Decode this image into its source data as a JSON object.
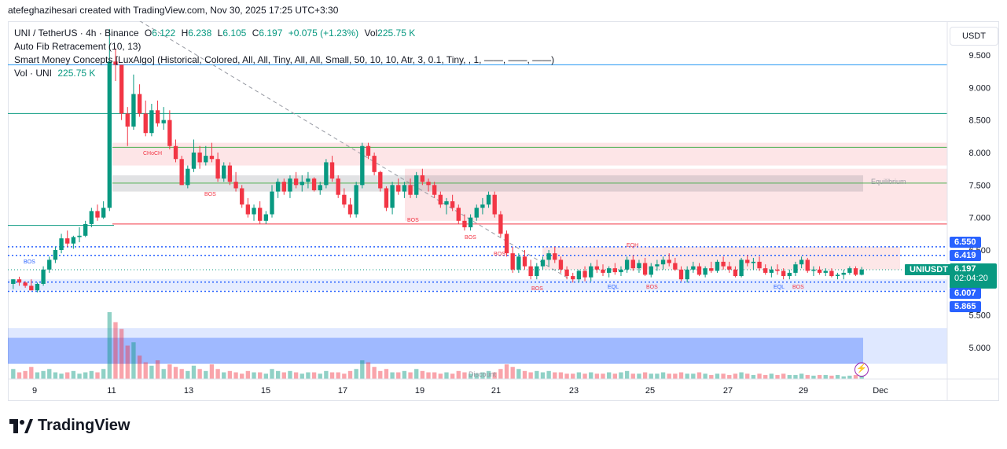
{
  "caption": "atefeghazihesari created with TradingView.com, Nov 30, 2025 17:25 UTC+3:30",
  "legend": {
    "symbol": "UNI / TetherUS · 4h · Binance",
    "o_label": "O",
    "o": "6.122",
    "h_label": "H",
    "h": "6.238",
    "l_label": "L",
    "l": "6.105",
    "c_label": "C",
    "c": "6.197",
    "change": "+0.075 (+1.23%)",
    "vol_label": "Vol",
    "vol": "225.75 K",
    "fib": "Auto Fib Retracement (10, 13)",
    "smc": "Smart Money Concepts [LuxAlgo] (Historical, Colored, All, All, Tiny, All, All, Small, 50, 10, 10, Atr, 3, 0.1, Tiny, , 1, ——, ——, ——)",
    "vol_ind": "Vol · UNI",
    "vol_ind_value": "225.75 K"
  },
  "currency_button": "USDT",
  "brand": "TradingView",
  "badges": {
    "p6550": "6.550",
    "p6419": "6.419",
    "symbol": "UNIUSDT",
    "last": "6.197",
    "countdown": "02:04:20",
    "p6007": "6.007",
    "p5865": "5.865"
  },
  "colors": {
    "up": "#089981",
    "down": "#f23645",
    "blue": "#2962ff"
  },
  "chart_data": {
    "type": "candlestick",
    "interval": "4h",
    "symbol": "UNI / TetherUS",
    "ylim": [
      4.7,
      9.8
    ],
    "y_ticks": [
      "9.500",
      "9.000",
      "8.500",
      "8.000",
      "7.500",
      "7.000",
      "6.500",
      "6.000",
      "5.500",
      "5.000"
    ],
    "x_ticks": [
      "9",
      "11",
      "13",
      "15",
      "17",
      "19",
      "21",
      "23",
      "25",
      "27",
      "29",
      "Dec"
    ],
    "candles": [
      [
        5.98,
        6.05,
        5.9,
        6.05
      ],
      [
        6.05,
        6.09,
        5.95,
        6.0
      ],
      [
        6.0,
        6.02,
        5.92,
        5.95
      ],
      [
        5.95,
        6.05,
        5.88,
        5.88
      ],
      [
        5.88,
        6.0,
        5.85,
        5.98
      ],
      [
        5.98,
        6.25,
        5.95,
        6.2
      ],
      [
        6.2,
        6.4,
        6.15,
        6.35
      ],
      [
        6.35,
        6.55,
        6.3,
        6.5
      ],
      [
        6.5,
        6.75,
        6.45,
        6.68
      ],
      [
        6.68,
        6.8,
        6.55,
        6.6
      ],
      [
        6.6,
        6.72,
        6.52,
        6.7
      ],
      [
        6.7,
        6.85,
        6.62,
        6.72
      ],
      [
        6.72,
        6.95,
        6.7,
        6.9
      ],
      [
        6.9,
        7.15,
        6.85,
        7.1
      ],
      [
        7.1,
        7.2,
        6.95,
        7.0
      ],
      [
        7.0,
        7.25,
        6.98,
        7.15
      ],
      [
        7.15,
        9.9,
        7.1,
        9.4
      ],
      [
        9.4,
        9.6,
        9.1,
        9.35
      ],
      [
        9.35,
        9.3,
        8.5,
        8.6
      ],
      [
        8.6,
        8.7,
        8.1,
        8.4
      ],
      [
        8.4,
        9.2,
        8.35,
        8.9
      ],
      [
        8.9,
        9.05,
        8.55,
        8.6
      ],
      [
        8.6,
        8.8,
        8.25,
        8.3
      ],
      [
        8.3,
        8.75,
        8.25,
        8.65
      ],
      [
        8.65,
        8.8,
        8.4,
        8.45
      ],
      [
        8.45,
        8.7,
        8.35,
        8.5
      ],
      [
        8.5,
        8.65,
        8.05,
        8.1
      ],
      [
        8.1,
        8.2,
        7.85,
        7.9
      ],
      [
        7.9,
        7.95,
        7.5,
        7.5
      ],
      [
        7.5,
        7.8,
        7.45,
        7.75
      ],
      [
        7.75,
        8.2,
        7.7,
        8.0
      ],
      [
        8.0,
        8.1,
        7.75,
        7.85
      ],
      [
        7.85,
        8.1,
        7.8,
        7.95
      ],
      [
        7.95,
        8.15,
        7.85,
        7.9
      ],
      [
        7.9,
        8.0,
        7.55,
        7.6
      ],
      [
        7.6,
        7.85,
        7.55,
        7.8
      ],
      [
        7.8,
        7.85,
        7.5,
        7.55
      ],
      [
        7.55,
        7.7,
        7.4,
        7.45
      ],
      [
        7.45,
        7.5,
        7.15,
        7.2
      ],
      [
        7.2,
        7.3,
        7.0,
        7.05
      ],
      [
        7.05,
        7.2,
        6.95,
        7.15
      ],
      [
        7.15,
        7.25,
        6.9,
        6.95
      ],
      [
        6.95,
        7.1,
        6.9,
        7.05
      ],
      [
        7.05,
        7.5,
        7.0,
        7.4
      ],
      [
        7.4,
        7.6,
        7.3,
        7.55
      ],
      [
        7.55,
        7.6,
        7.35,
        7.4
      ],
      [
        7.4,
        7.65,
        7.3,
        7.6
      ],
      [
        7.6,
        7.7,
        7.45,
        7.5
      ],
      [
        7.5,
        7.65,
        7.4,
        7.55
      ],
      [
        7.55,
        7.7,
        7.45,
        7.6
      ],
      [
        7.6,
        7.62,
        7.4,
        7.42
      ],
      [
        7.42,
        7.55,
        7.35,
        7.5
      ],
      [
        7.5,
        7.9,
        7.45,
        7.85
      ],
      [
        7.85,
        7.95,
        7.55,
        7.6
      ],
      [
        7.6,
        7.65,
        7.3,
        7.35
      ],
      [
        7.35,
        7.45,
        7.15,
        7.2
      ],
      [
        7.2,
        7.3,
        7.0,
        7.05
      ],
      [
        7.05,
        7.55,
        7.0,
        7.5
      ],
      [
        7.5,
        8.15,
        7.45,
        8.1
      ],
      [
        8.1,
        8.15,
        7.9,
        7.95
      ],
      [
        7.95,
        8.0,
        7.65,
        7.7
      ],
      [
        7.7,
        7.72,
        7.4,
        7.45
      ],
      [
        7.45,
        7.48,
        7.1,
        7.15
      ],
      [
        7.15,
        7.55,
        7.05,
        7.5
      ],
      [
        7.5,
        7.6,
        7.35,
        7.4
      ],
      [
        7.4,
        7.55,
        7.3,
        7.5
      ],
      [
        7.5,
        7.6,
        7.3,
        7.35
      ],
      [
        7.35,
        7.7,
        7.3,
        7.65
      ],
      [
        7.65,
        7.75,
        7.5,
        7.55
      ],
      [
        7.55,
        7.6,
        7.4,
        7.5
      ],
      [
        7.5,
        7.55,
        7.3,
        7.35
      ],
      [
        7.35,
        7.4,
        7.15,
        7.2
      ],
      [
        7.2,
        7.3,
        7.05,
        7.25
      ],
      [
        7.25,
        7.35,
        7.1,
        7.15
      ],
      [
        7.15,
        7.2,
        6.9,
        6.95
      ],
      [
        6.95,
        7.05,
        6.8,
        6.85
      ],
      [
        6.85,
        7.05,
        6.8,
        7.0
      ],
      [
        7.0,
        7.2,
        6.95,
        7.15
      ],
      [
        7.15,
        7.3,
        7.05,
        7.2
      ],
      [
        7.2,
        7.4,
        7.15,
        7.35
      ],
      [
        7.35,
        7.4,
        7.0,
        7.05
      ],
      [
        7.05,
        7.1,
        6.7,
        6.75
      ],
      [
        6.75,
        6.8,
        6.4,
        6.45
      ],
      [
        6.45,
        6.55,
        6.15,
        6.2
      ],
      [
        6.2,
        6.45,
        6.15,
        6.4
      ],
      [
        6.4,
        6.5,
        6.2,
        6.25
      ],
      [
        6.25,
        6.35,
        6.05,
        6.1
      ],
      [
        6.1,
        6.3,
        6.05,
        6.25
      ],
      [
        6.25,
        6.4,
        6.2,
        6.35
      ],
      [
        6.35,
        6.5,
        6.25,
        6.45
      ],
      [
        6.45,
        6.55,
        6.3,
        6.35
      ],
      [
        6.35,
        6.4,
        6.15,
        6.2
      ],
      [
        6.2,
        6.25,
        6.05,
        6.1
      ],
      [
        6.1,
        6.15,
        6.0,
        6.05
      ],
      [
        6.05,
        6.2,
        6.0,
        6.18
      ],
      [
        6.18,
        6.25,
        6.02,
        6.08
      ],
      [
        6.08,
        6.3,
        6.02,
        6.25
      ],
      [
        6.25,
        6.35,
        6.15,
        6.2
      ],
      [
        6.2,
        6.28,
        6.1,
        6.15
      ],
      [
        6.15,
        6.25,
        6.08,
        6.22
      ],
      [
        6.22,
        6.3,
        6.12,
        6.16
      ],
      [
        6.16,
        6.25,
        6.1,
        6.2
      ],
      [
        6.2,
        6.4,
        6.15,
        6.35
      ],
      [
        6.35,
        6.42,
        6.18,
        6.22
      ],
      [
        6.22,
        6.35,
        6.15,
        6.3
      ],
      [
        6.3,
        6.38,
        6.1,
        6.12
      ],
      [
        6.12,
        6.3,
        6.08,
        6.25
      ],
      [
        6.25,
        6.35,
        6.18,
        6.28
      ],
      [
        6.28,
        6.4,
        6.2,
        6.35
      ],
      [
        6.35,
        6.45,
        6.25,
        6.3
      ],
      [
        6.3,
        6.38,
        6.18,
        6.2
      ],
      [
        6.2,
        6.25,
        6.02,
        6.05
      ],
      [
        6.05,
        6.25,
        6.0,
        6.2
      ],
      [
        6.2,
        6.32,
        6.15,
        6.25
      ],
      [
        6.25,
        6.3,
        6.1,
        6.12
      ],
      [
        6.12,
        6.25,
        6.08,
        6.22
      ],
      [
        6.22,
        6.32,
        6.15,
        6.18
      ],
      [
        6.18,
        6.35,
        6.15,
        6.32
      ],
      [
        6.32,
        6.4,
        6.2,
        6.25
      ],
      [
        6.25,
        6.32,
        6.15,
        6.2
      ],
      [
        6.2,
        6.25,
        6.08,
        6.1
      ],
      [
        6.1,
        6.38,
        6.08,
        6.35
      ],
      [
        6.35,
        6.42,
        6.25,
        6.3
      ],
      [
        6.3,
        6.38,
        6.2,
        6.32
      ],
      [
        6.32,
        6.4,
        6.18,
        6.22
      ],
      [
        6.22,
        6.28,
        6.12,
        6.15
      ],
      [
        6.15,
        6.25,
        6.08,
        6.2
      ],
      [
        6.2,
        6.28,
        6.12,
        6.18
      ],
      [
        6.18,
        6.22,
        6.05,
        6.1
      ],
      [
        6.1,
        6.2,
        6.05,
        6.15
      ],
      [
        6.15,
        6.32,
        6.1,
        6.28
      ],
      [
        6.28,
        6.4,
        6.22,
        6.35
      ],
      [
        6.35,
        6.38,
        6.15,
        6.18
      ],
      [
        6.18,
        6.25,
        6.1,
        6.2
      ],
      [
        6.2,
        6.25,
        6.12,
        6.15
      ],
      [
        6.15,
        6.22,
        6.1,
        6.18
      ],
      [
        6.18,
        6.22,
        6.08,
        6.1
      ],
      [
        6.1,
        6.15,
        6.05,
        6.12
      ],
      [
        6.12,
        6.2,
        6.05,
        6.15
      ],
      [
        6.15,
        6.25,
        6.12,
        6.22
      ],
      [
        6.22,
        6.25,
        6.1,
        6.12
      ],
      [
        6.12,
        6.24,
        6.11,
        6.2
      ]
    ],
    "volumes": [
      0.15,
      0.1,
      0.12,
      0.18,
      0.1,
      0.12,
      0.15,
      0.1,
      0.08,
      0.1,
      0.12,
      0.08,
      0.1,
      0.12,
      0.1,
      0.15,
      1.0,
      0.85,
      0.75,
      0.5,
      0.55,
      0.35,
      0.25,
      0.2,
      0.28,
      0.15,
      0.22,
      0.18,
      0.15,
      0.12,
      0.2,
      0.15,
      0.12,
      0.22,
      0.15,
      0.1,
      0.12,
      0.1,
      0.08,
      0.12,
      0.1,
      0.1,
      0.08,
      0.15,
      0.12,
      0.1,
      0.12,
      0.1,
      0.08,
      0.1,
      0.1,
      0.08,
      0.12,
      0.1,
      0.1,
      0.08,
      0.12,
      0.15,
      0.28,
      0.25,
      0.18,
      0.12,
      0.15,
      0.1,
      0.1,
      0.12,
      0.1,
      0.15,
      0.12,
      0.1,
      0.1,
      0.08,
      0.1,
      0.08,
      0.12,
      0.1,
      0.08,
      0.08,
      0.1,
      0.12,
      0.1,
      0.15,
      0.22,
      0.18,
      0.15,
      0.12,
      0.1,
      0.12,
      0.1,
      0.12,
      0.1,
      0.1,
      0.08,
      0.08,
      0.1,
      0.08,
      0.1,
      0.08,
      0.08,
      0.1,
      0.08,
      0.1,
      0.12,
      0.08,
      0.08,
      0.1,
      0.08,
      0.08,
      0.1,
      0.08,
      0.08,
      0.1,
      0.08,
      0.08,
      0.1,
      0.08,
      0.06,
      0.08,
      0.08,
      0.06,
      0.08,
      0.1,
      0.08,
      0.06,
      0.08,
      0.06,
      0.08,
      0.06,
      0.08,
      0.06,
      0.06,
      0.08,
      0.06,
      0.05,
      0.06,
      0.06,
      0.05,
      0.06,
      0.04,
      0.05,
      0.06,
      0.05
    ],
    "fib_levels": [
      9.35,
      8.6,
      6.9,
      6.08
    ],
    "zones": {
      "premium": [
        7.8,
        8.15
      ],
      "equilibrium": [
        7.4,
        7.65
      ],
      "discount": [
        4.75,
        5.3
      ]
    },
    "annotations": [
      "CHoCH",
      "BOS",
      "BOS",
      "BOS",
      "BOS",
      "BOS",
      "EQH",
      "BOS",
      "EQL",
      "BOS",
      "EQL",
      "BOS",
      "Equilibrium",
      "Discount"
    ]
  }
}
